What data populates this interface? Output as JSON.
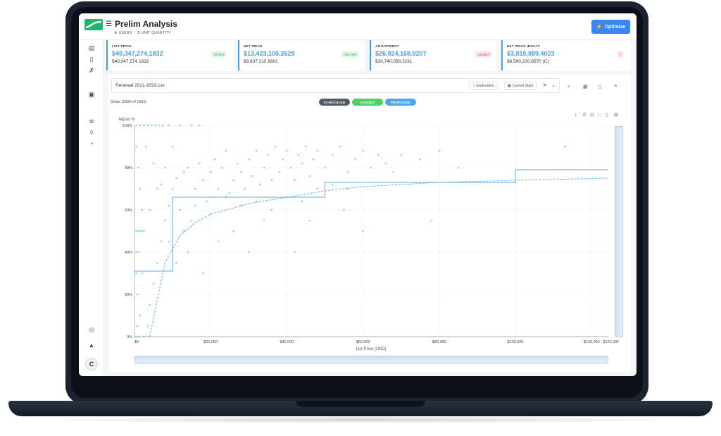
{
  "header": {
    "title": "Prelim Analysis",
    "toggles": [
      {
        "icon": "users-icon",
        "label": "USERS"
      },
      {
        "icon": "dollar-icon",
        "label": "UNIT QUANTITY"
      }
    ],
    "optimize_label": "Optimize"
  },
  "kpis": [
    {
      "label": "LIST PRICE",
      "value": "$40,347,274.1832",
      "sub": "$40,347,274.1832",
      "badge": "+0.00%",
      "trend": "up"
    },
    {
      "label": "NET PRICE",
      "value": "$13,423,105.2625",
      "sub": "$9,607,215.8601",
      "badge": "+39.72%",
      "trend": "up"
    },
    {
      "label": "ADJUSTMENT",
      "value": "$26,924,168.9207",
      "sub": "$30,740,058.3231",
      "badge": "-12.41%",
      "trend": "down"
    },
    {
      "label": "NET PRICE IMPACT",
      "value": "$3,815,889.4023",
      "sub": "$6,590,220.8570 (C)",
      "badge": "",
      "trend": "down"
    }
  ],
  "toolbar": {
    "file_name": "Renewal 2021-2023.csv",
    "exploration_label": "Exploration",
    "current_state_label": "Current State"
  },
  "deals_label": "Deals (1566 of 1591)",
  "status_pills": [
    {
      "label": "SCHEDULED",
      "color": "#555b63"
    },
    {
      "label": "LANDED",
      "color": "#4cd06a"
    },
    {
      "label": "PROPOSED",
      "color": "#4aa6f0"
    }
  ],
  "chart_data": {
    "type": "scatter",
    "title": "",
    "xlabel": "List Price (USD)",
    "ylabel": "Adjust %",
    "xlim": [
      0,
      124397
    ],
    "ylim": [
      0,
      100
    ],
    "x_ticks": [
      "$0",
      "$20,000",
      "$40,000",
      "$60,000",
      "$80,000",
      "$100,000",
      "$120,000",
      "$124,397"
    ],
    "y_ticks": [
      "0%",
      "20%",
      "40%",
      "60%",
      "80%",
      "100%"
    ],
    "grid": true,
    "series": [
      {
        "type": "scatter",
        "color": "#4cd06a",
        "points": [
          [
            500,
            100
          ],
          [
            1500,
            100
          ],
          [
            2500,
            100
          ],
          [
            3500,
            100
          ],
          [
            4500,
            100
          ],
          [
            5500,
            100
          ],
          [
            6500,
            100
          ],
          [
            7500,
            100
          ],
          [
            9000,
            100
          ],
          [
            12000,
            100
          ],
          [
            15000,
            100
          ],
          [
            17000,
            100
          ],
          [
            500,
            90
          ],
          [
            1000,
            80
          ],
          [
            1500,
            70
          ],
          [
            2000,
            60
          ],
          [
            500,
            50
          ],
          [
            1000,
            50
          ],
          [
            1500,
            50
          ],
          [
            2000,
            50
          ],
          [
            2500,
            50
          ],
          [
            500,
            40
          ],
          [
            1200,
            40
          ],
          [
            2000,
            30
          ],
          [
            500,
            30
          ],
          [
            800,
            20
          ],
          [
            1500,
            10
          ],
          [
            700,
            5
          ],
          [
            300,
            0
          ],
          [
            1200,
            0
          ],
          [
            2500,
            0
          ],
          [
            3500,
            5
          ],
          [
            4000,
            15
          ],
          [
            5000,
            25
          ],
          [
            6000,
            35
          ],
          [
            7000,
            45
          ],
          [
            8000,
            55
          ],
          [
            9000,
            62
          ],
          [
            10000,
            70
          ],
          [
            11000,
            75
          ],
          [
            12000,
            60
          ],
          [
            13000,
            78
          ],
          [
            14000,
            80
          ],
          [
            15000,
            55
          ],
          [
            16000,
            70
          ],
          [
            17000,
            82
          ],
          [
            18000,
            74
          ],
          [
            19000,
            64
          ],
          [
            20000,
            78
          ],
          [
            21000,
            84
          ],
          [
            22000,
            70
          ],
          [
            23000,
            80
          ],
          [
            24000,
            88
          ],
          [
            25000,
            68
          ],
          [
            26000,
            74
          ],
          [
            27000,
            82
          ],
          [
            28000,
            78
          ],
          [
            29000,
            70
          ],
          [
            30000,
            84
          ],
          [
            31000,
            76
          ],
          [
            32000,
            88
          ],
          [
            33000,
            72
          ],
          [
            34000,
            80
          ],
          [
            35000,
            86
          ],
          [
            36000,
            74
          ],
          [
            37000,
            90
          ],
          [
            38000,
            78
          ],
          [
            39000,
            84
          ],
          [
            40000,
            88
          ],
          [
            41000,
            80
          ],
          [
            42000,
            74
          ],
          [
            43000,
            86
          ],
          [
            44000,
            82
          ],
          [
            45000,
            90
          ],
          [
            46000,
            76
          ],
          [
            47000,
            84
          ],
          [
            48000,
            88
          ],
          [
            50000,
            80
          ],
          [
            52000,
            86
          ],
          [
            54000,
            90
          ],
          [
            56000,
            78
          ],
          [
            58000,
            84
          ],
          [
            60000,
            88
          ],
          [
            62000,
            80
          ],
          [
            64000,
            86
          ],
          [
            66000,
            82
          ],
          [
            68000,
            78
          ],
          [
            70000,
            86
          ],
          [
            75000,
            84
          ],
          [
            80000,
            88
          ],
          [
            85000,
            80
          ],
          [
            113000,
            90
          ],
          [
            14000,
            40
          ],
          [
            18000,
            30
          ],
          [
            22000,
            45
          ],
          [
            26000,
            50
          ],
          [
            30000,
            40
          ],
          [
            34000,
            55
          ],
          [
            42000,
            40
          ],
          [
            46000,
            55
          ],
          [
            55000,
            60
          ],
          [
            60000,
            50
          ],
          [
            78000,
            55
          ],
          [
            4000,
            60
          ],
          [
            6000,
            70
          ],
          [
            8000,
            80
          ],
          [
            10000,
            90
          ],
          [
            3000,
            90
          ],
          [
            5000,
            82
          ],
          [
            7000,
            72
          ],
          [
            9000,
            45
          ],
          [
            11000,
            35
          ],
          [
            13000,
            50
          ],
          [
            16000,
            62
          ],
          [
            20000,
            58
          ],
          [
            24000,
            66
          ],
          [
            28000,
            62
          ],
          [
            32000,
            64
          ],
          [
            36000,
            60
          ],
          [
            40000,
            66
          ],
          [
            44000,
            64
          ],
          [
            48000,
            70
          ],
          [
            52000,
            72
          ],
          [
            56000,
            70
          ]
        ]
      }
    ],
    "step_line": {
      "color": "#5aa8e6",
      "points": [
        [
          0,
          31
        ],
        [
          10000,
          31
        ],
        [
          10000,
          66
        ],
        [
          50000,
          66
        ],
        [
          50000,
          73
        ],
        [
          100000,
          73
        ],
        [
          100000,
          79
        ],
        [
          124397,
          79
        ]
      ]
    },
    "fit_curve": {
      "color": "#5aa8e6",
      "dashed": true,
      "points": [
        [
          4000,
          0
        ],
        [
          8000,
          35
        ],
        [
          12000,
          48
        ],
        [
          16000,
          54
        ],
        [
          20000,
          58
        ],
        [
          30000,
          63
        ],
        [
          40000,
          66
        ],
        [
          50000,
          69
        ],
        [
          60000,
          71
        ],
        [
          80000,
          73
        ],
        [
          100000,
          74
        ],
        [
          124397,
          75
        ]
      ]
    }
  }
}
